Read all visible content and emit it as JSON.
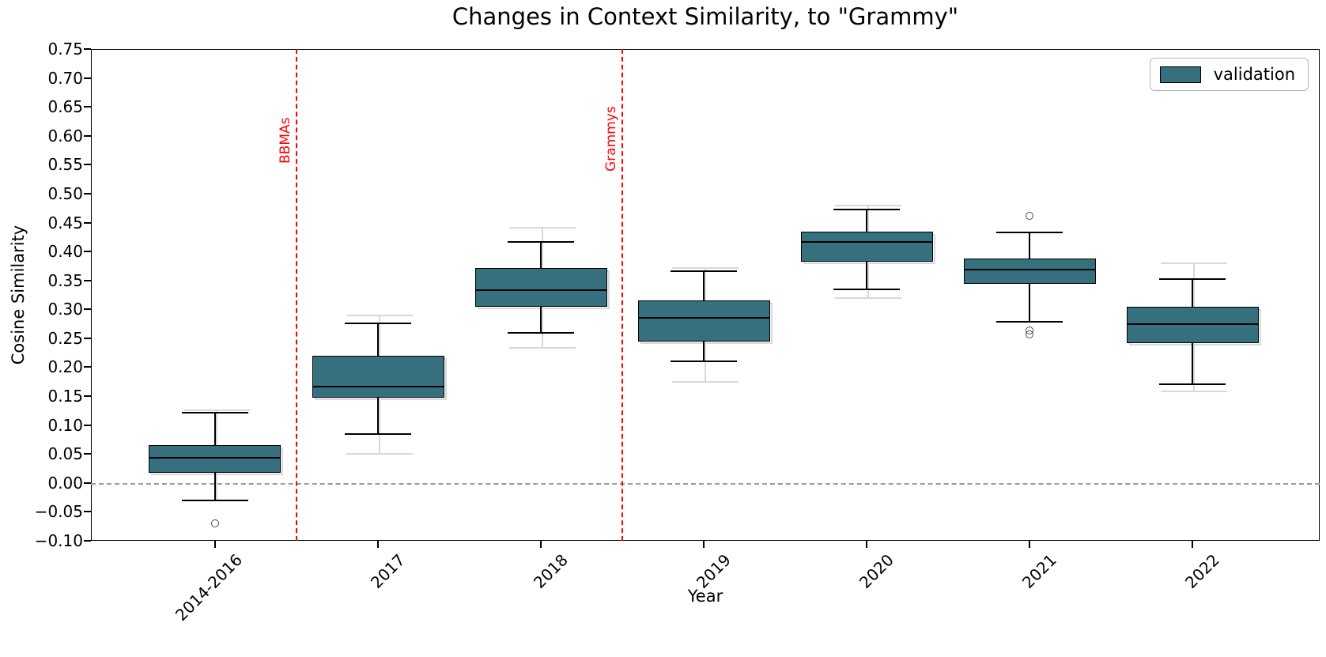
{
  "title": "Changes in Context Similarity, to \"Grammy\"",
  "chart_data": {
    "type": "boxplot",
    "title": "Changes in Context Similarity, to \"Grammy\"",
    "xlabel": "Year",
    "ylabel": "Cosine Similarity",
    "ylim": [
      -0.1,
      0.75
    ],
    "ytick_labels": [
      "0.75",
      "0.70",
      "0.65",
      "0.60",
      "0.55",
      "0.50",
      "0.45",
      "0.40",
      "0.35",
      "0.30",
      "0.25",
      "0.20",
      "0.15",
      "0.10",
      "0.05",
      "0.00",
      "−0.05",
      "−0.10"
    ],
    "ytick_values": [
      0.75,
      0.7,
      0.65,
      0.6,
      0.55,
      0.5,
      0.45,
      0.4,
      0.35,
      0.3,
      0.25,
      0.2,
      0.15,
      0.1,
      0.05,
      0.0,
      -0.05,
      -0.1
    ],
    "categories": [
      "2014-2016",
      "2017",
      "2018",
      "2019",
      "2020",
      "2021",
      "2022"
    ],
    "grid": false,
    "legend": {
      "label": "validation",
      "position": "upper right",
      "swatch_color": "#36707F"
    },
    "series": [
      {
        "name": "validation",
        "fill_color": "#36707F",
        "edge_color": "#000000",
        "boxes": [
          {
            "category": "2014-2016",
            "whisker_lo": -0.03,
            "q1": 0.018,
            "median": 0.044,
            "q3": 0.066,
            "whisker_hi": 0.122,
            "outliers": [
              -0.07
            ],
            "shadow": {
              "hi": 0.126
            }
          },
          {
            "category": "2017",
            "whisker_lo": 0.085,
            "q1": 0.147,
            "median": 0.166,
            "q3": 0.22,
            "whisker_hi": 0.276,
            "outliers": [],
            "shadow": {
              "lo": 0.05,
              "hi": 0.29
            }
          },
          {
            "category": "2018",
            "whisker_lo": 0.259,
            "q1": 0.305,
            "median": 0.333,
            "q3": 0.371,
            "whisker_hi": 0.417,
            "outliers": [],
            "shadow": {
              "lo": 0.233,
              "hi": 0.441
            }
          },
          {
            "category": "2019",
            "whisker_lo": 0.21,
            "q1": 0.245,
            "median": 0.286,
            "q3": 0.315,
            "whisker_hi": 0.366,
            "outliers": [],
            "shadow": {
              "lo": 0.174,
              "hi": 0.372
            }
          },
          {
            "category": "2020",
            "whisker_lo": 0.334,
            "q1": 0.382,
            "median": 0.417,
            "q3": 0.434,
            "whisker_hi": 0.472,
            "outliers": [],
            "shadow": {
              "lo": 0.32,
              "hi": 0.479
            }
          },
          {
            "category": "2021",
            "whisker_lo": 0.279,
            "q1": 0.344,
            "median": 0.369,
            "q3": 0.388,
            "whisker_hi": 0.433,
            "outliers": [
              0.462,
              0.263,
              0.257
            ],
            "shadow": null
          },
          {
            "category": "2022",
            "whisker_lo": 0.17,
            "q1": 0.241,
            "median": 0.275,
            "q3": 0.305,
            "whisker_hi": 0.352,
            "outliers": [],
            "shadow": {
              "lo": 0.158,
              "hi": 0.38
            }
          }
        ]
      }
    ],
    "vlines": [
      {
        "label": "BBMAs",
        "position": 1.5,
        "color": "#ff0000",
        "style": "dashed",
        "label_bottom_value": 0.552
      },
      {
        "label": "Grammys",
        "position": 3.5,
        "color": "#ff0000",
        "style": "dashed",
        "label_bottom_value": 0.538
      }
    ],
    "zero_line": {
      "value": 0.0,
      "color": "#9a9a9a",
      "style": "dashed"
    }
  },
  "colors": {
    "box_fill": "#36707F",
    "box_edge": "#000000",
    "shadow_series": "#d8d8d8",
    "event_line": "#ff0000",
    "zero_line": "#9a9a9a",
    "text": "#000000"
  }
}
